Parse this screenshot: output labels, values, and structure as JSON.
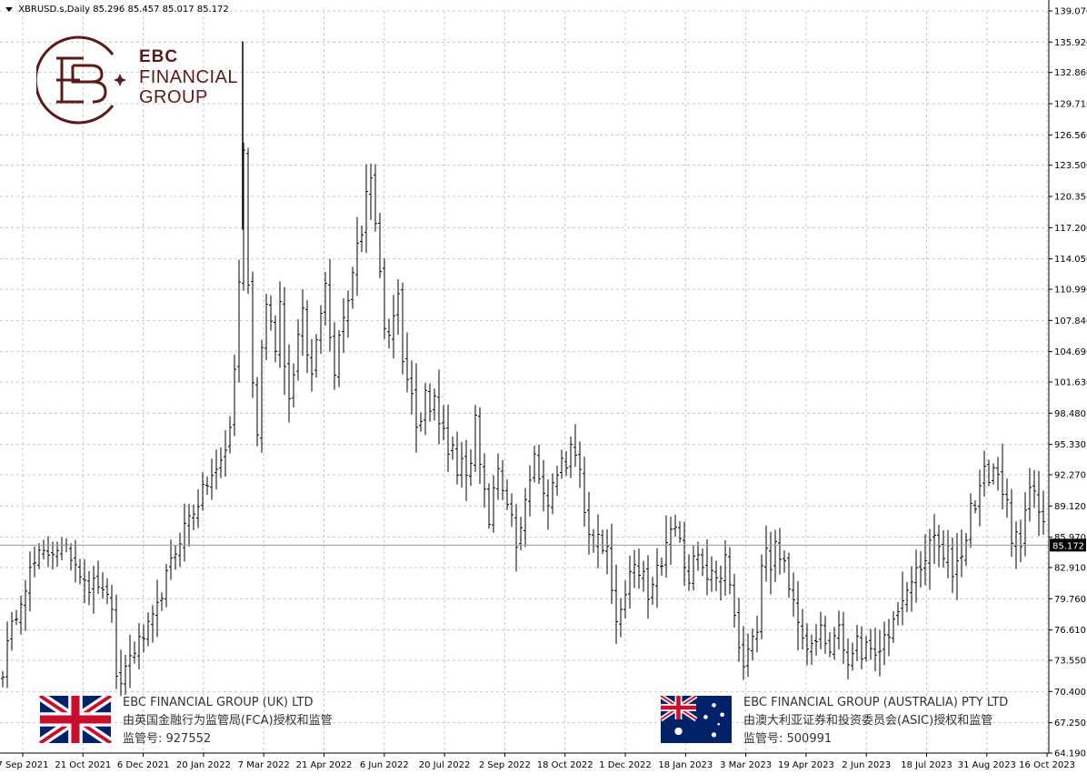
{
  "header": {
    "symbol_line": "XBRUSD.s,Daily",
    "ohlc": "85.296 85.457 85.017 85.172"
  },
  "logo": {
    "line1": "EBC",
    "line2": "FINANCIAL",
    "line3": "GROUP",
    "color": "#5a1a1a",
    "icon": "ebc-monogram-icon"
  },
  "regulators": [
    {
      "name": "EBC FINANCIAL GROUP (UK) LTD",
      "authority": "由英国金融行为监管局(FCA)授权和监管",
      "license": "监管号: 927552",
      "flag": "uk-flag-icon"
    },
    {
      "name": "EBC FINANCIAL GROUP (AUSTRALIA) PTY LTD",
      "authority": "由澳大利亚证券和投资委员会(ASIC)授权和监管",
      "license": "监管号: 500991",
      "flag": "australia-flag-icon"
    }
  ],
  "chart_data": {
    "type": "ohlc",
    "symbol": "XBRUSD.s",
    "timeframe": "Daily",
    "last_price": 85.172,
    "last_price_label": "85.172",
    "ylim": [
      64.19,
      139.07
    ],
    "y_ticks": [
      "139.070",
      "135.920",
      "132.860",
      "129.710",
      "126.560",
      "123.500",
      "120.350",
      "117.200",
      "114.050",
      "110.990",
      "107.840",
      "104.690",
      "101.630",
      "98.480",
      "95.330",
      "92.270",
      "89.120",
      "85.970",
      "82.910",
      "79.760",
      "76.610",
      "73.550",
      "70.400",
      "67.250",
      "64.190"
    ],
    "x_ticks": [
      "7 Sep 2021",
      "21 Oct 2021",
      "6 Dec 2021",
      "20 Jan 2022",
      "7 Mar 2022",
      "21 Apr 2022",
      "6 Jun 2022",
      "20 Jul 2022",
      "2 Sep 2022",
      "18 Oct 2022",
      "1 Dec 2022",
      "18 Jan 2023",
      "3 Mar 2023",
      "19 Apr 2023",
      "2 Jun 2023",
      "18 Jul 2023",
      "31 Aug 2023",
      "16 Oct 2023"
    ],
    "grid": true,
    "close_path": [
      [
        0,
        72.5
      ],
      [
        5,
        75.0
      ],
      [
        12,
        77.5
      ],
      [
        20,
        80.0
      ],
      [
        30,
        82.5
      ],
      [
        40,
        84.0
      ],
      [
        48,
        84.3
      ],
      [
        60,
        85.0
      ],
      [
        68,
        84.5
      ],
      [
        75,
        84.2
      ],
      [
        83,
        83.0
      ],
      [
        90,
        82.0
      ],
      [
        97,
        80.5
      ],
      [
        103,
        82.0
      ],
      [
        110,
        80.0
      ],
      [
        118,
        81.0
      ],
      [
        122,
        75.0
      ],
      [
        126,
        70.0
      ],
      [
        130,
        71.5
      ],
      [
        136,
        73.0
      ],
      [
        142,
        74.5
      ],
      [
        148,
        75.0
      ],
      [
        155,
        76.0
      ],
      [
        162,
        77.0
      ],
      [
        168,
        78.0
      ],
      [
        175,
        80.5
      ],
      [
        182,
        82.5
      ],
      [
        190,
        84.5
      ],
      [
        197,
        86.5
      ],
      [
        205,
        88.0
      ],
      [
        212,
        89.0
      ],
      [
        220,
        90.5
      ],
      [
        228,
        92.0
      ],
      [
        235,
        92.5
      ],
      [
        242,
        94.0
      ],
      [
        248,
        95.5
      ],
      [
        252,
        99.0
      ],
      [
        256,
        104.0
      ],
      [
        260,
        112.0
      ],
      [
        263,
        118.0
      ],
      [
        266,
        128.0
      ],
      [
        268,
        118.0
      ],
      [
        272,
        106.0
      ],
      [
        276,
        100.0
      ],
      [
        280,
        97.0
      ],
      [
        284,
        104.0
      ],
      [
        288,
        108.0
      ],
      [
        292,
        112.0
      ],
      [
        296,
        106.0
      ],
      [
        300,
        104.0
      ],
      [
        305,
        110.0
      ],
      [
        310,
        103.0
      ],
      [
        315,
        100.0
      ],
      [
        320,
        103.0
      ],
      [
        325,
        107.0
      ],
      [
        330,
        109.0
      ],
      [
        335,
        105.0
      ],
      [
        340,
        103.0
      ],
      [
        345,
        106.0
      ],
      [
        350,
        109.0
      ],
      [
        355,
        112.0
      ],
      [
        360,
        106.0
      ],
      [
        365,
        103.0
      ],
      [
        370,
        106.0
      ],
      [
        375,
        108.0
      ],
      [
        380,
        110.0
      ],
      [
        385,
        113.0
      ],
      [
        390,
        115.0
      ],
      [
        395,
        117.0
      ],
      [
        400,
        121.0
      ],
      [
        405,
        122.0
      ],
      [
        408,
        119.0
      ],
      [
        412,
        115.0
      ],
      [
        416,
        111.0
      ],
      [
        420,
        107.0
      ],
      [
        425,
        106.0
      ],
      [
        430,
        108.0
      ],
      [
        435,
        111.0
      ],
      [
        440,
        104.0
      ],
      [
        445,
        102.0
      ],
      [
        450,
        100.0
      ],
      [
        455,
        97.0
      ],
      [
        460,
        98.0
      ],
      [
        465,
        101.0
      ],
      [
        470,
        99.0
      ],
      [
        475,
        100.0
      ],
      [
        480,
        98.0
      ],
      [
        485,
        97.0
      ],
      [
        490,
        94.0
      ],
      [
        495,
        96.0
      ],
      [
        500,
        93.0
      ],
      [
        505,
        94.0
      ],
      [
        510,
        92.0
      ],
      [
        515,
        93.5
      ],
      [
        520,
        98.0
      ],
      [
        525,
        94.0
      ],
      [
        530,
        90.5
      ],
      [
        535,
        88.0
      ],
      [
        540,
        90.5
      ],
      [
        545,
        92.5
      ],
      [
        550,
        90.0
      ],
      [
        555,
        89.0
      ],
      [
        560,
        88.5
      ],
      [
        565,
        85.5
      ],
      [
        570,
        86.5
      ],
      [
        575,
        89.0
      ],
      [
        580,
        92.0
      ],
      [
        585,
        94.5
      ],
      [
        590,
        92.5
      ],
      [
        595,
        91.0
      ],
      [
        600,
        89.5
      ],
      [
        605,
        91.0
      ],
      [
        610,
        93.0
      ],
      [
        615,
        94.0
      ],
      [
        620,
        92.5
      ],
      [
        625,
        95.0
      ],
      [
        630,
        94.5
      ],
      [
        635,
        92.5
      ],
      [
        640,
        89.0
      ],
      [
        645,
        87.0
      ],
      [
        650,
        84.5
      ],
      [
        655,
        86.0
      ],
      [
        660,
        84.0
      ],
      [
        665,
        85.5
      ],
      [
        670,
        80.0
      ],
      [
        675,
        77.5
      ],
      [
        680,
        79.0
      ],
      [
        685,
        80.5
      ],
      [
        690,
        82.0
      ],
      [
        695,
        83.0
      ],
      [
        700,
        81.5
      ],
      [
        705,
        82.5
      ],
      [
        710,
        79.5
      ],
      [
        715,
        80.5
      ],
      [
        720,
        82.5
      ],
      [
        725,
        83.5
      ],
      [
        730,
        85.0
      ],
      [
        735,
        86.5
      ],
      [
        740,
        87.0
      ],
      [
        745,
        85.5
      ],
      [
        750,
        83.0
      ],
      [
        755,
        81.0
      ],
      [
        760,
        83.5
      ],
      [
        765,
        85.0
      ],
      [
        770,
        83.5
      ],
      [
        775,
        82.0
      ],
      [
        780,
        83.0
      ],
      [
        785,
        81.5
      ],
      [
        790,
        82.5
      ],
      [
        795,
        83.5
      ],
      [
        800,
        81.0
      ],
      [
        805,
        78.0
      ],
      [
        810,
        75.5
      ],
      [
        815,
        73.5
      ],
      [
        820,
        75.0
      ],
      [
        825,
        76.5
      ],
      [
        830,
        77.0
      ],
      [
        835,
        83.5
      ],
      [
        840,
        84.5
      ],
      [
        845,
        83.0
      ],
      [
        850,
        85.5
      ],
      [
        855,
        84.0
      ],
      [
        860,
        83.0
      ],
      [
        865,
        81.0
      ],
      [
        870,
        80.0
      ],
      [
        875,
        78.0
      ],
      [
        880,
        75.0
      ],
      [
        885,
        74.0
      ],
      [
        890,
        76.0
      ],
      [
        895,
        75.0
      ],
      [
        900,
        76.5
      ],
      [
        905,
        75.0
      ],
      [
        910,
        74.5
      ],
      [
        915,
        76.0
      ],
      [
        920,
        77.0
      ],
      [
        925,
        75.0
      ],
      [
        930,
        73.0
      ],
      [
        935,
        74.0
      ],
      [
        940,
        75.5
      ],
      [
        945,
        74.0
      ],
      [
        950,
        75.0
      ],
      [
        955,
        75.5
      ],
      [
        960,
        73.5
      ],
      [
        965,
        74.0
      ],
      [
        970,
        75.5
      ],
      [
        975,
        76.0
      ],
      [
        980,
        77.5
      ],
      [
        985,
        79.0
      ],
      [
        990,
        79.5
      ],
      [
        995,
        80.0
      ],
      [
        1000,
        81.5
      ],
      [
        1005,
        82.5
      ],
      [
        1010,
        83.0
      ],
      [
        1015,
        84.0
      ],
      [
        1020,
        85.0
      ],
      [
        1025,
        86.0
      ],
      [
        1030,
        85.0
      ],
      [
        1035,
        83.5
      ],
      [
        1040,
        84.5
      ],
      [
        1045,
        82.5
      ],
      [
        1050,
        83.5
      ],
      [
        1055,
        84.5
      ],
      [
        1060,
        86.0
      ],
      [
        1065,
        89.0
      ],
      [
        1070,
        89.5
      ],
      [
        1075,
        91.0
      ],
      [
        1080,
        92.5
      ],
      [
        1085,
        92.0
      ],
      [
        1090,
        93.0
      ],
      [
        1095,
        92.0
      ],
      [
        1100,
        91.0
      ],
      [
        1105,
        89.0
      ],
      [
        1110,
        85.0
      ],
      [
        1115,
        86.0
      ],
      [
        1120,
        85.5
      ],
      [
        1125,
        89.5
      ],
      [
        1130,
        91.0
      ],
      [
        1135,
        90.0
      ],
      [
        1140,
        88.5
      ],
      [
        1145,
        87.0
      ],
      [
        1148,
        85.5
      ]
    ]
  }
}
